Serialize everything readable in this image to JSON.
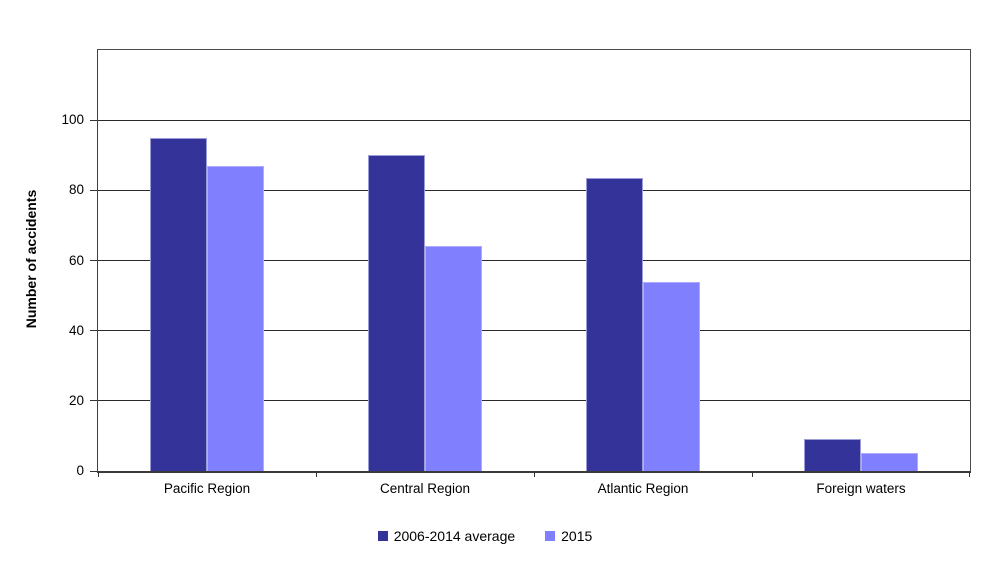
{
  "chart_data": {
    "type": "bar",
    "title": "",
    "xlabel": "",
    "ylabel": "Number of accidents",
    "categories": [
      "Pacific Region",
      "Central Region",
      "Atlantic Region",
      "Foreign waters"
    ],
    "series": [
      {
        "name": "2006-2014 average",
        "values": [
          95,
          90,
          83.5,
          9
        ],
        "fill_color": "#333399",
        "edge_color": "#9c9cd9"
      },
      {
        "name": "2015",
        "values": [
          87,
          64,
          54,
          5
        ],
        "fill_color": "#8080ff",
        "edge_color": "#ababff"
      }
    ],
    "ylim": [
      0,
      120
    ],
    "yticks": [
      0,
      20,
      40,
      60,
      80,
      100
    ],
    "grid": "horizontal",
    "legend_position": "bottom",
    "plot_background": "#ffffff",
    "gridline_color": "#2b2b2b",
    "text_color": "#000000"
  }
}
